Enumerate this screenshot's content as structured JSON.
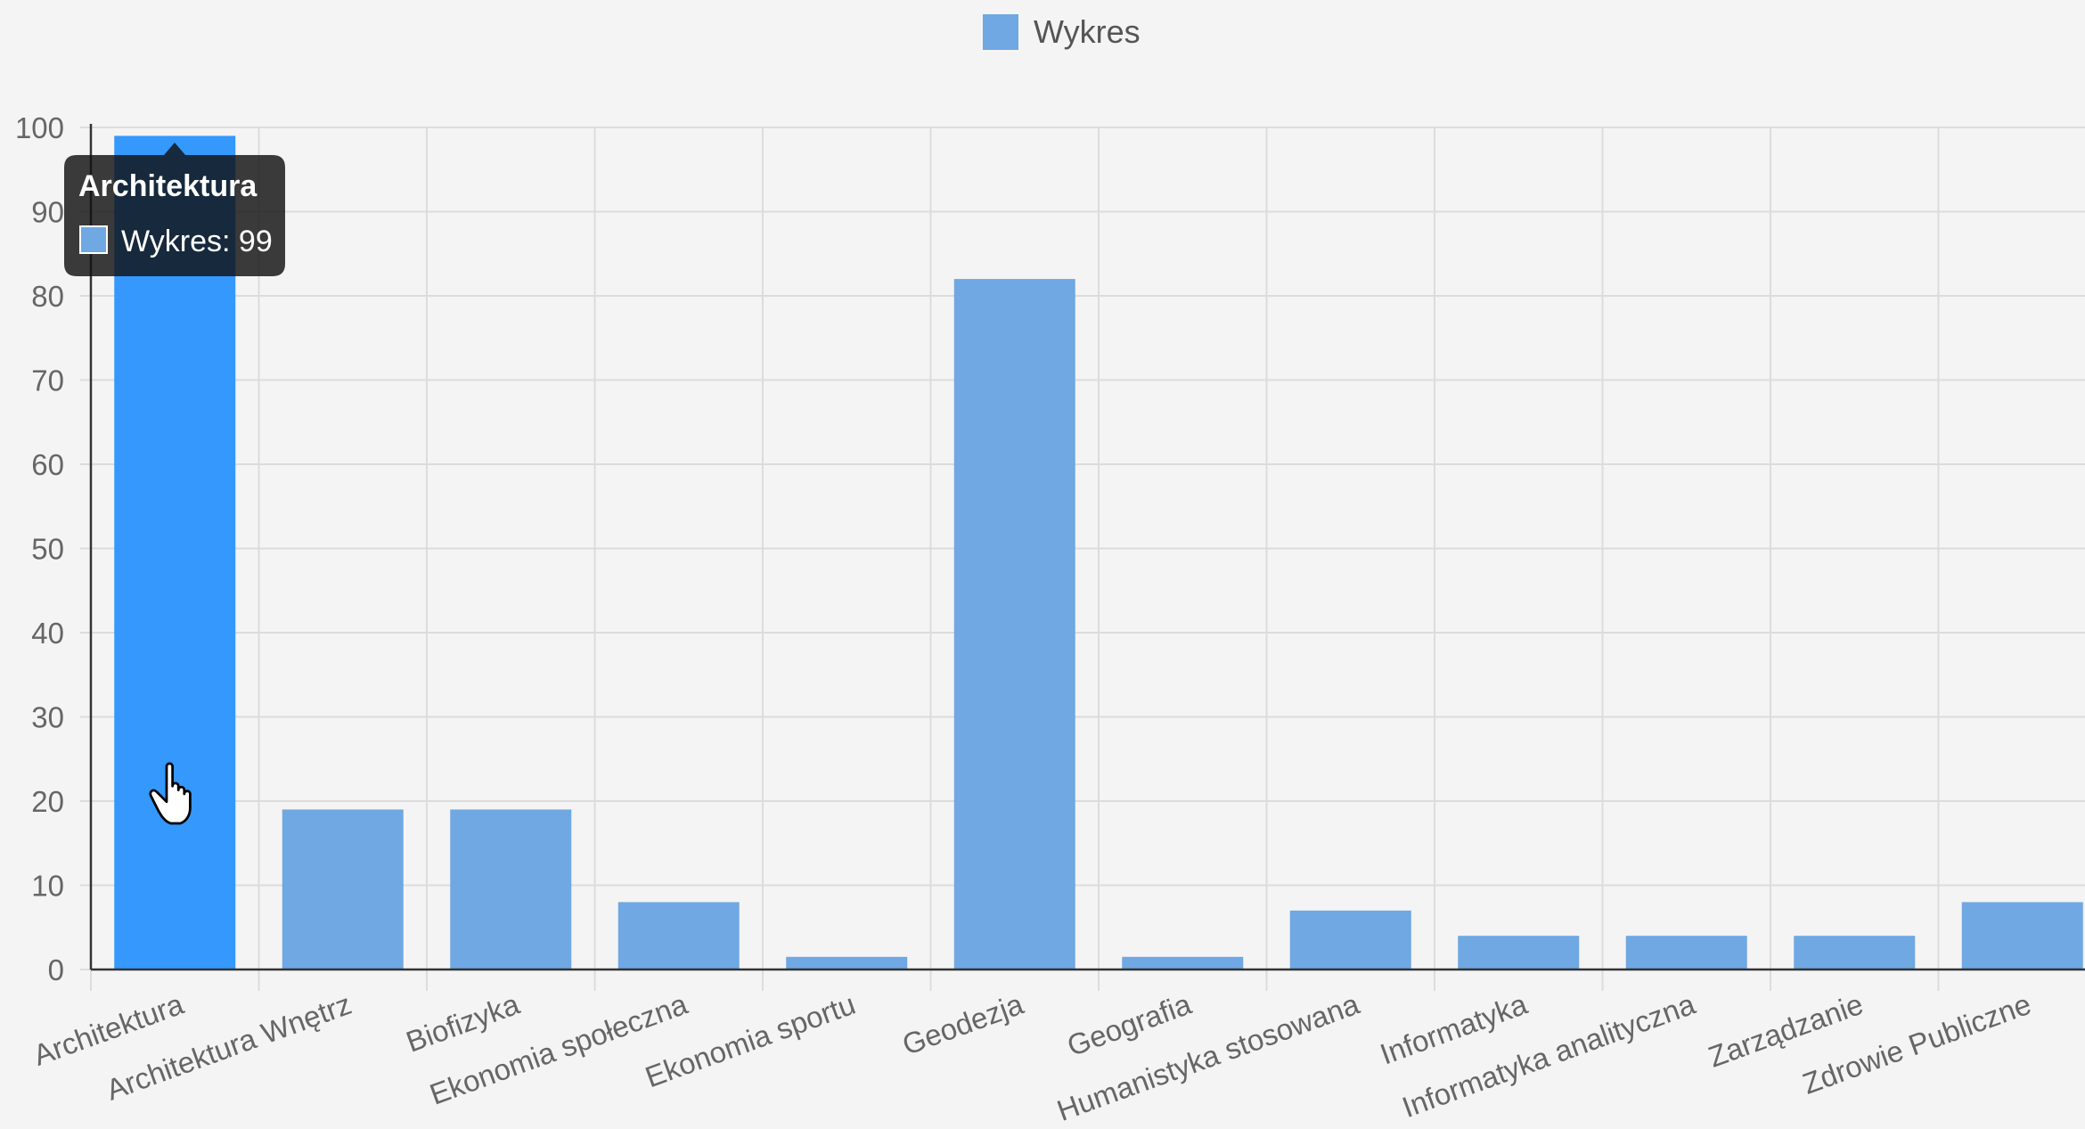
{
  "chart_data": {
    "type": "bar",
    "categories": [
      "Architektura",
      "Architektura Wnętrz",
      "Biofizyka",
      "Ekonomia społeczna",
      "Ekonomia sportu",
      "Geodezja",
      "Geografia",
      "Humanistyka stosowana",
      "Informatyka",
      "Informatyka analityczna",
      "Zarządzanie",
      "Zdrowie Publiczne"
    ],
    "series": [
      {
        "name": "Wykres",
        "values": [
          99,
          19,
          19,
          8,
          1.5,
          82,
          1.5,
          7,
          4,
          4,
          4,
          8
        ]
      }
    ],
    "ylim": [
      0,
      100
    ],
    "yticks": [
      0,
      10,
      20,
      30,
      40,
      50,
      60,
      70,
      80,
      90,
      100
    ],
    "grid": true,
    "legend_position": "top-center",
    "colors": {
      "bar": "#6fa8e3",
      "bar_hover": "#3498fd",
      "grid": "#dcdcdc",
      "axis": "#333333",
      "tooltip_bg": "#111111"
    },
    "hovered_index": 0,
    "tooltip": {
      "title": "Architektura",
      "text": "Wykres: 99"
    }
  }
}
